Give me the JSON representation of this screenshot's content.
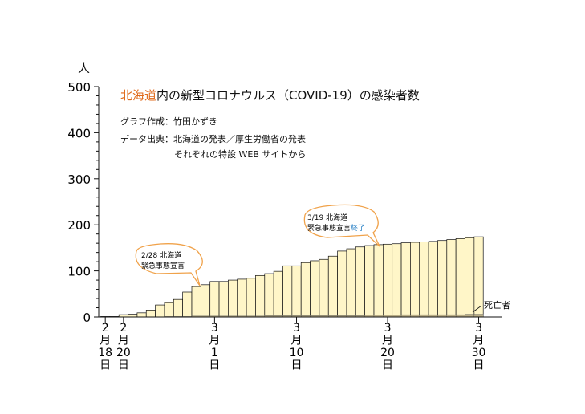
{
  "title": {
    "prefix": "北海道",
    "rest": "内の新型コロナウルス（COVID-19）の感染者数"
  },
  "credit": {
    "author": "グラフ作成：竹田かずき",
    "source_line1": "データ出典：北海道の発表／厚生労働省の発表",
    "source_line2": "それぞれの特設 WEB サイトから"
  },
  "y_unit": "人",
  "colors": {
    "title_highlight": "#e06a1a",
    "bar_fill": "#fff6c8",
    "death_fill": "#b9ad86",
    "bubble_border": "#f0a24a",
    "bubble_accent": "#1a78c2"
  },
  "annotations": [
    {
      "text1": "2/28 北海道",
      "text2": "緊急事態宣言",
      "accent": ""
    },
    {
      "text1": "3/19 北海道",
      "text2": "緊急事態宣言",
      "accent": "終了"
    }
  ],
  "chart_data": {
    "type": "bar",
    "title": "北海道内の新型コロナウルス（COVID-19）の感染者数",
    "ylabel": "人",
    "ylim": [
      0,
      500
    ],
    "yticks": [
      0,
      100,
      200,
      300,
      400,
      500
    ],
    "dates": [
      "2/18",
      "2/19",
      "2/20",
      "2/21",
      "2/22",
      "2/23",
      "2/24",
      "2/25",
      "2/26",
      "2/27",
      "2/28",
      "2/29",
      "3/1",
      "3/2",
      "3/3",
      "3/4",
      "3/5",
      "3/6",
      "3/7",
      "3/8",
      "3/9",
      "3/10",
      "3/11",
      "3/12",
      "3/13",
      "3/14",
      "3/15",
      "3/16",
      "3/17",
      "3/18",
      "3/19",
      "3/20",
      "3/21",
      "3/22",
      "3/23",
      "3/24",
      "3/25",
      "3/26",
      "3/27",
      "3/28",
      "3/29",
      "3/30"
    ],
    "series": [
      {
        "name": "感染者数",
        "values": [
          1,
          1,
          5,
          6,
          9,
          15,
          26,
          31,
          38,
          54,
          66,
          70,
          77,
          77,
          80,
          82,
          84,
          90,
          94,
          99,
          111,
          111,
          118,
          122,
          125,
          132,
          143,
          148,
          152,
          155,
          157,
          158,
          159,
          161,
          162,
          163,
          164,
          166,
          168,
          170,
          172,
          174
        ]
      },
      {
        "name": "死亡者",
        "values": [
          0,
          0,
          0,
          0,
          0,
          0,
          0,
          1,
          1,
          1,
          2,
          2,
          2,
          2,
          2,
          2,
          2,
          2,
          3,
          3,
          3,
          3,
          3,
          3,
          3,
          3,
          3,
          3,
          3,
          4,
          4,
          4,
          4,
          5,
          5,
          5,
          5,
          5,
          5,
          5,
          6,
          6
        ]
      }
    ],
    "death_label": "死亡者",
    "x_labels": [
      {
        "index": 0,
        "month": "2",
        "m": "月",
        "day": "18",
        "d": "日"
      },
      {
        "index": 2,
        "month": "2",
        "m": "月",
        "day": "20",
        "d": "日"
      },
      {
        "index": 12,
        "month": "3",
        "m": "月",
        "day": "1",
        "d": "日"
      },
      {
        "index": 21,
        "month": "3",
        "m": "月",
        "day": "10",
        "d": "日"
      },
      {
        "index": 31,
        "month": "3",
        "m": "月",
        "day": "20",
        "d": "日"
      },
      {
        "index": 41,
        "month": "3",
        "m": "月",
        "day": "30",
        "d": "日"
      }
    ]
  }
}
